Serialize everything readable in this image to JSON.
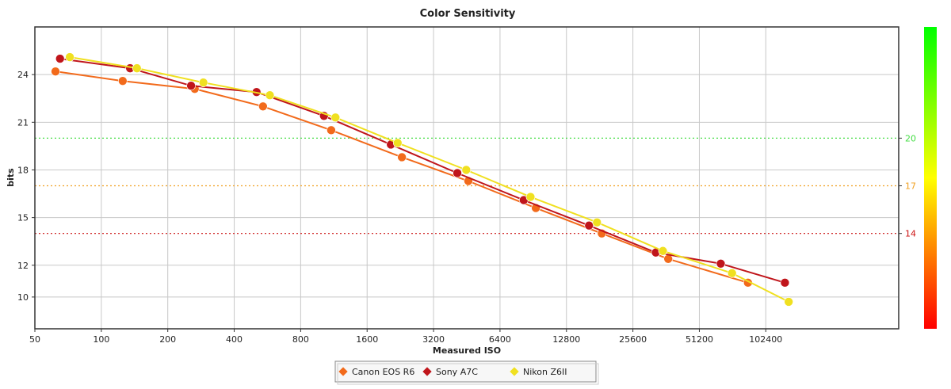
{
  "chart_data": {
    "type": "line",
    "title": "Color Sensitivity",
    "xlabel": "Measured ISO",
    "ylabel": "bits",
    "x_scale": "log2",
    "xlim": [
      50,
      409600
    ],
    "ylim": [
      8,
      27
    ],
    "x_ticks": [
      50,
      100,
      200,
      400,
      800,
      1600,
      3200,
      6400,
      12800,
      25600,
      51200,
      102400
    ],
    "x_tick_labels": [
      "50",
      "100",
      "200",
      "400",
      "800",
      "1600",
      "3200",
      "6400",
      "12800",
      "25600",
      "51200",
      "102400"
    ],
    "y_ticks": [
      10,
      12,
      15,
      18,
      21,
      24
    ],
    "y_tick_labels": [
      "10",
      "12",
      "15",
      "18",
      "21",
      "24"
    ],
    "grid": true,
    "legend_position": "bottom-center",
    "reference_lines": [
      {
        "value": 20,
        "label": "20",
        "color": "#44dd44"
      },
      {
        "value": 17,
        "label": "17",
        "color": "#f0a020"
      },
      {
        "value": 14,
        "label": "14",
        "color": "#cc1111"
      }
    ],
    "colorbar": {
      "from": "#ff0000",
      "mid": "#ffff00",
      "to": "#00ff00"
    },
    "series": [
      {
        "name": "Canon EOS R6",
        "color": "#f26a1b",
        "points": [
          {
            "x": 62,
            "y": 24.2
          },
          {
            "x": 125,
            "y": 23.6
          },
          {
            "x": 265,
            "y": 23.1
          },
          {
            "x": 540,
            "y": 22.0
          },
          {
            "x": 1100,
            "y": 20.5
          },
          {
            "x": 2300,
            "y": 18.8
          },
          {
            "x": 4600,
            "y": 17.3
          },
          {
            "x": 9300,
            "y": 15.6
          },
          {
            "x": 18500,
            "y": 14.0
          },
          {
            "x": 37000,
            "y": 12.4
          },
          {
            "x": 85000,
            "y": 10.9
          }
        ]
      },
      {
        "name": "Sony A7C",
        "color": "#c0151b",
        "points": [
          {
            "x": 65,
            "y": 25.0
          },
          {
            "x": 135,
            "y": 24.4
          },
          {
            "x": 255,
            "y": 23.3
          },
          {
            "x": 505,
            "y": 22.9
          },
          {
            "x": 1020,
            "y": 21.4
          },
          {
            "x": 2050,
            "y": 19.6
          },
          {
            "x": 4100,
            "y": 17.8
          },
          {
            "x": 8200,
            "y": 16.1
          },
          {
            "x": 16200,
            "y": 14.5
          },
          {
            "x": 32500,
            "y": 12.8
          },
          {
            "x": 64000,
            "y": 12.1
          },
          {
            "x": 125000,
            "y": 10.9
          }
        ]
      },
      {
        "name": "Nikon Z6II",
        "color": "#f0e020",
        "points": [
          {
            "x": 72,
            "y": 25.1
          },
          {
            "x": 145,
            "y": 24.4
          },
          {
            "x": 290,
            "y": 23.5
          },
          {
            "x": 580,
            "y": 22.7
          },
          {
            "x": 1150,
            "y": 21.3
          },
          {
            "x": 2200,
            "y": 19.7
          },
          {
            "x": 4500,
            "y": 18.0
          },
          {
            "x": 8800,
            "y": 16.3
          },
          {
            "x": 17600,
            "y": 14.7
          },
          {
            "x": 35000,
            "y": 12.9
          },
          {
            "x": 72000,
            "y": 11.5
          },
          {
            "x": 130000,
            "y": 9.7
          }
        ]
      }
    ]
  }
}
